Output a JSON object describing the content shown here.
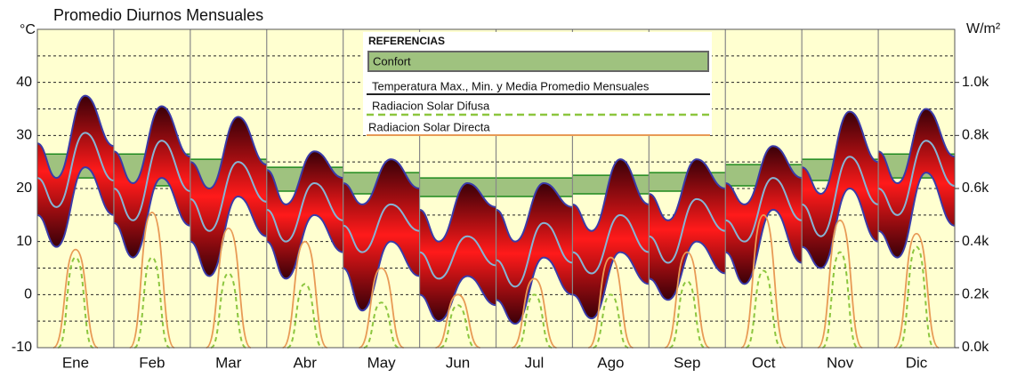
{
  "chart_data": {
    "type": "diurnal",
    "title": "Promedio Diurnos Mensuales",
    "y_unit": "°C",
    "y2_unit": "W/m²",
    "ylim": [
      -10,
      50
    ],
    "yticks": [
      -10,
      0,
      10,
      20,
      30,
      40
    ],
    "minor_yticks": [
      -5,
      5,
      15,
      25,
      35,
      45
    ],
    "y2lim": [
      0,
      1200
    ],
    "y2ticks": [
      {
        "value": 0,
        "label": "0.0k"
      },
      {
        "value": 200,
        "label": "0.2k"
      },
      {
        "value": 400,
        "label": "0.4k"
      },
      {
        "value": 600,
        "label": "0.6k"
      },
      {
        "value": 800,
        "label": "0.8k"
      },
      {
        "value": 1000,
        "label": "1.0k"
      }
    ],
    "hours": [
      0,
      6,
      15,
      24
    ],
    "colors": {
      "comfort": "#9fc27f",
      "comfort_edge": "#1f8a1f",
      "envelope": "#3a3aa8",
      "mean": "#86b4d4",
      "direct": "#e89a55",
      "diffuse": "#8cc63f",
      "background": "#ffffd0"
    },
    "months": [
      {
        "name": "Ene",
        "max": [
          28.5,
          22,
          37.5,
          28
        ],
        "mean": [
          22,
          16.5,
          30.5,
          21.5
        ],
        "min": [
          15,
          9,
          24,
          15
        ],
        "comfort": [
          22,
          26.5
        ],
        "direct": 370,
        "diffuse": 340
      },
      {
        "name": "Feb",
        "max": [
          27,
          21,
          35.5,
          26
        ],
        "mean": [
          20,
          14,
          29,
          19.5
        ],
        "min": [
          13.5,
          7,
          22,
          13
        ],
        "comfort": [
          20.5,
          26.5
        ],
        "direct": 510,
        "diffuse": 340
      },
      {
        "name": "Mar",
        "max": [
          25,
          20,
          33.5,
          24.5
        ],
        "mean": [
          18,
          12,
          25,
          17.5
        ],
        "min": [
          10,
          3.5,
          18.5,
          11
        ],
        "comfort": [
          20,
          25.5
        ],
        "direct": 450,
        "diffuse": 280
      },
      {
        "name": "Abr",
        "max": [
          23.5,
          17,
          27,
          22
        ],
        "mean": [
          16,
          10,
          21,
          14
        ],
        "min": [
          10,
          3,
          15,
          8
        ],
        "comfort": [
          19.5,
          24
        ],
        "direct": 400,
        "diffuse": 240
      },
      {
        "name": "May",
        "max": [
          21,
          17,
          25.5,
          20
        ],
        "mean": [
          13,
          8,
          17,
          12
        ],
        "min": [
          5,
          -3,
          10,
          3.5
        ],
        "comfort": [
          19,
          23
        ],
        "direct": 300,
        "diffuse": 170
      },
      {
        "name": "Jun",
        "max": [
          16,
          10,
          21,
          16.5
        ],
        "mean": [
          8,
          3,
          11,
          5.5
        ],
        "min": [
          0,
          -5,
          3.5,
          -2
        ],
        "comfort": [
          18.5,
          22
        ],
        "direct": 200,
        "diffuse": 160
      },
      {
        "name": "Jul",
        "max": [
          16,
          10,
          21,
          16.5
        ],
        "mean": [
          6.5,
          1.5,
          13.5,
          6
        ],
        "min": [
          -1,
          -5.5,
          7,
          0
        ],
        "comfort": [
          18.5,
          22
        ],
        "direct": 260,
        "diffuse": 200
      },
      {
        "name": "Ago",
        "max": [
          17,
          12,
          25.5,
          17
        ],
        "mean": [
          8,
          4,
          15,
          8
        ],
        "min": [
          0,
          -4.5,
          8,
          2
        ],
        "comfort": [
          19,
          22.5
        ],
        "direct": 340,
        "diffuse": 200
      },
      {
        "name": "Sep",
        "max": [
          19,
          14,
          25.5,
          20
        ],
        "mean": [
          11,
          6,
          18,
          12
        ],
        "min": [
          3,
          -1,
          10,
          4
        ],
        "comfort": [
          19.5,
          23
        ],
        "direct": 360,
        "diffuse": 250
      },
      {
        "name": "Oct",
        "max": [
          21,
          17,
          28,
          22
        ],
        "mean": [
          14,
          10,
          22,
          14
        ],
        "min": [
          8,
          2,
          16,
          6
        ],
        "comfort": [
          20.5,
          24.5
        ],
        "direct": 500,
        "diffuse": 290
      },
      {
        "name": "Nov",
        "max": [
          24,
          19,
          34.5,
          25
        ],
        "mean": [
          17,
          11,
          26,
          17
        ],
        "min": [
          9,
          5,
          20,
          10
        ],
        "comfort": [
          21.5,
          25.5
        ],
        "direct": 480,
        "diffuse": 360
      },
      {
        "name": "Dic",
        "max": [
          27,
          21,
          35,
          26
        ],
        "mean": [
          20,
          15,
          29,
          20.5
        ],
        "min": [
          12,
          7,
          23,
          13
        ],
        "comfort": [
          22,
          26.5
        ],
        "direct": 430,
        "diffuse": 380
      }
    ],
    "legend": {
      "title": "REFERENCIAS",
      "comfort": "Confort",
      "temperature": "Temperatura Max., Min. y Media Promedio Mensuales",
      "diffuse": "Radiacion Solar Difusa",
      "direct": "Radiacion Solar Directa"
    }
  }
}
